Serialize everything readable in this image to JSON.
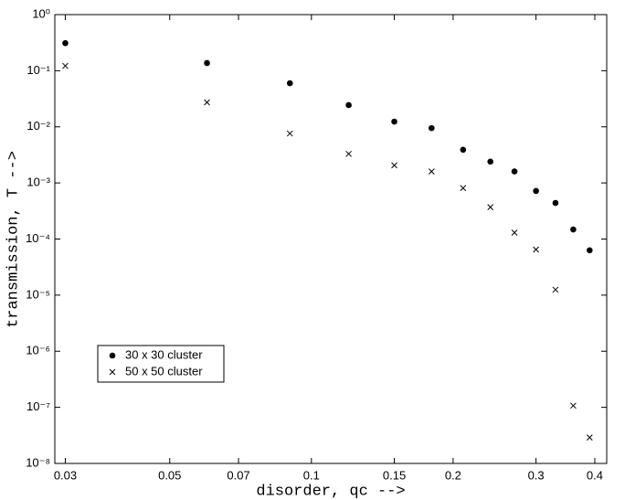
{
  "chart_data": {
    "type": "scatter",
    "xlabel": "disorder, qc -->",
    "ylabel": "transmission, T -->",
    "xscale": "log",
    "yscale": "log",
    "xlim": [
      0.0285,
      0.424
    ],
    "ylim": [
      1e-08,
      1
    ],
    "xticks": [
      0.03,
      0.05,
      0.07,
      0.1,
      0.15,
      0.2,
      0.3,
      0.4
    ],
    "yticks": [
      {
        "value": 1,
        "label": "10⁰"
      },
      {
        "value": 0.1,
        "label": "10⁻¹"
      },
      {
        "value": 0.01,
        "label": "10⁻²"
      },
      {
        "value": 0.001,
        "label": "10⁻³"
      },
      {
        "value": 0.0001,
        "label": "10⁻⁴"
      },
      {
        "value": 1e-05,
        "label": "10⁻⁵"
      },
      {
        "value": 1e-06,
        "label": "10⁻⁶"
      },
      {
        "value": 1e-07,
        "label": "10⁻⁷"
      },
      {
        "value": 1e-08,
        "label": "10⁻⁸"
      }
    ],
    "legend": "lower left",
    "series": [
      {
        "name": "30 x 30 cluster",
        "marker": "dot",
        "color": "#000000",
        "x": [
          0.03,
          0.06,
          0.09,
          0.12,
          0.15,
          0.18,
          0.21,
          0.24,
          0.27,
          0.3,
          0.33,
          0.36,
          0.39
        ],
        "values": [
          0.31,
          0.137,
          0.06,
          0.0244,
          0.0124,
          0.0095,
          0.0039,
          0.0024,
          0.0016,
          0.00072,
          0.00044,
          0.000148,
          6.3e-05
        ]
      },
      {
        "name": "50 x 50 cluster",
        "marker": "x",
        "color": "#000000",
        "x": [
          0.03,
          0.06,
          0.09,
          0.12,
          0.15,
          0.18,
          0.21,
          0.24,
          0.27,
          0.3,
          0.33,
          0.36,
          0.39
        ],
        "values": [
          0.122,
          0.0273,
          0.0076,
          0.0033,
          0.00206,
          0.0016,
          0.00081,
          0.00037,
          0.00013,
          6.5e-05,
          1.25e-05,
          1.07e-07,
          2.9e-08
        ]
      }
    ]
  }
}
